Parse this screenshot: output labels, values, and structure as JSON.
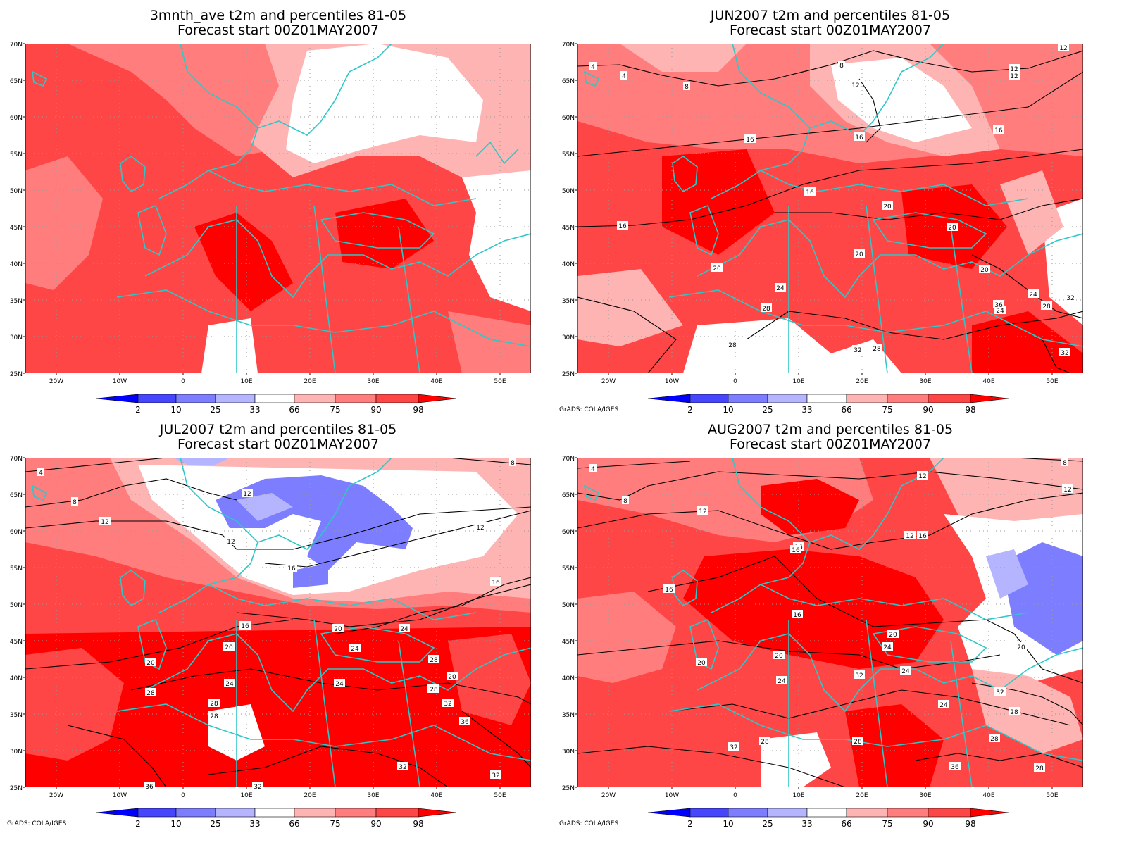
{
  "panels": [
    {
      "id": "p1",
      "title_line1": "3mnth_ave t2m and percentiles 81-05",
      "title_line2": "Forecast start 00Z01MAY2007",
      "credit": "",
      "contour_labels": []
    },
    {
      "id": "p2",
      "title_line1": "JUN2007 t2m and percentiles 81-05",
      "title_line2": "Forecast start 00Z01MAY2007",
      "credit": "GrADS: COLA/IGES",
      "contour_labels": [
        "4",
        "4",
        "8",
        "8",
        "12",
        "12",
        "12",
        "12",
        "16",
        "16",
        "16",
        "16",
        "16",
        "20",
        "20",
        "20",
        "20",
        "20",
        "24",
        "24",
        "24",
        "28",
        "28",
        "28",
        "28",
        "32",
        "32",
        "36",
        "32"
      ]
    },
    {
      "id": "p3",
      "title_line1": "JUL2007 t2m and percentiles 81-05",
      "title_line2": "Forecast start 00Z01MAY2007",
      "credit": "GrADS: COLA/IGES",
      "contour_labels": [
        "4",
        "8",
        "8",
        "12",
        "12",
        "12",
        "12",
        "16",
        "16",
        "16",
        "20",
        "20",
        "20",
        "20",
        "24",
        "24",
        "24",
        "24",
        "24",
        "28",
        "28",
        "28",
        "28",
        "28",
        "32",
        "32",
        "32",
        "32",
        "36",
        "36"
      ]
    },
    {
      "id": "p4",
      "title_line1": "AUG2007 t2m and percentiles 81-05",
      "title_line2": "Forecast start 00Z01MAY2007",
      "credit": "GrADS: COLA/IGES",
      "contour_labels": [
        "4",
        "8",
        "8",
        "12",
        "12",
        "12",
        "12",
        "16",
        "16",
        "16",
        "16",
        "16",
        "20",
        "20",
        "20",
        "20",
        "24",
        "24",
        "24",
        "24",
        "28",
        "28",
        "28",
        "28",
        "28",
        "32",
        "32",
        "32",
        "36"
      ]
    }
  ],
  "axes": {
    "lat_labels": [
      "70N",
      "65N",
      "60N",
      "55N",
      "50N",
      "45N",
      "40N",
      "35N",
      "30N",
      "25N"
    ],
    "lon_labels": [
      "20W",
      "10W",
      "0",
      "10E",
      "20E",
      "30E",
      "40E",
      "50E"
    ]
  },
  "colorbar": {
    "labels": [
      "2",
      "10",
      "25",
      "33",
      "66",
      "75",
      "90",
      "98"
    ],
    "colors": [
      "#0000ff",
      "#4646ff",
      "#7d7dff",
      "#b4b4ff",
      "#ffffff",
      "#ffb4b4",
      "#ff7d7d",
      "#ff4646",
      "#ff0000"
    ]
  },
  "colors": {
    "coastline": "#2fc7c7",
    "contour": "#000000",
    "grid": "#9a9a9a"
  }
}
